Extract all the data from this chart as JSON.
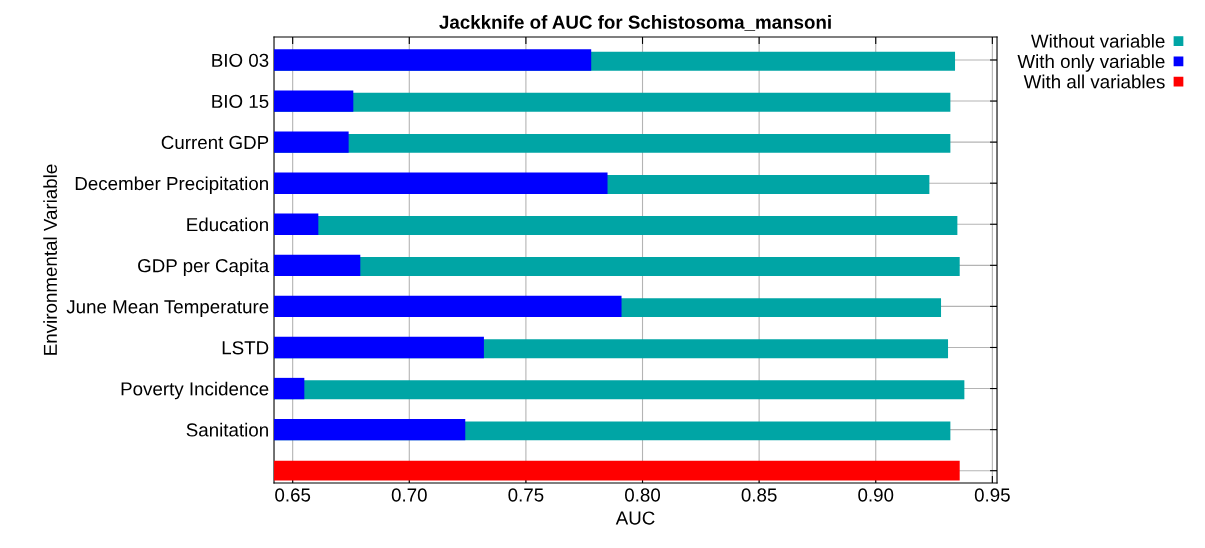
{
  "chart_data": {
    "type": "bar",
    "orientation": "horizontal",
    "title": "Jackknife of AUC for Schistosoma_mansoni",
    "xlabel": "AUC",
    "ylabel": "Environmental Variable",
    "categories": [
      "BIO 03",
      "BIO 15",
      "Current GDP",
      "December Precipitation",
      "Education",
      "GDP per Capita",
      "June Mean Temperature",
      "LSTD",
      "Poverty Incidence",
      "Sanitation",
      null
    ],
    "series": [
      {
        "name": "Without variable",
        "color": "#00a5a5",
        "values": [
          0.934,
          0.932,
          0.932,
          0.923,
          0.935,
          0.936,
          0.928,
          0.931,
          0.938,
          0.932,
          null
        ]
      },
      {
        "name": "With only variable",
        "color": "#0000ff",
        "values": [
          0.778,
          0.676,
          0.674,
          0.785,
          0.661,
          0.679,
          0.791,
          0.732,
          0.655,
          0.724,
          null
        ]
      },
      {
        "name": "With all variables",
        "color": "#ff0000",
        "values": [
          null,
          null,
          null,
          null,
          null,
          null,
          null,
          null,
          null,
          null,
          0.936
        ]
      }
    ],
    "xlim": [
      0.642,
      0.952
    ],
    "xticks": [
      0.65,
      {
        "value": 0.7,
        "label": "0.70"
      },
      0.75,
      {
        "value": 0.8,
        "label": "0.80"
      },
      0.85,
      {
        "value": 0.9,
        "label": "0.90"
      },
      0.95
    ],
    "grid": true,
    "legend": "top right"
  }
}
